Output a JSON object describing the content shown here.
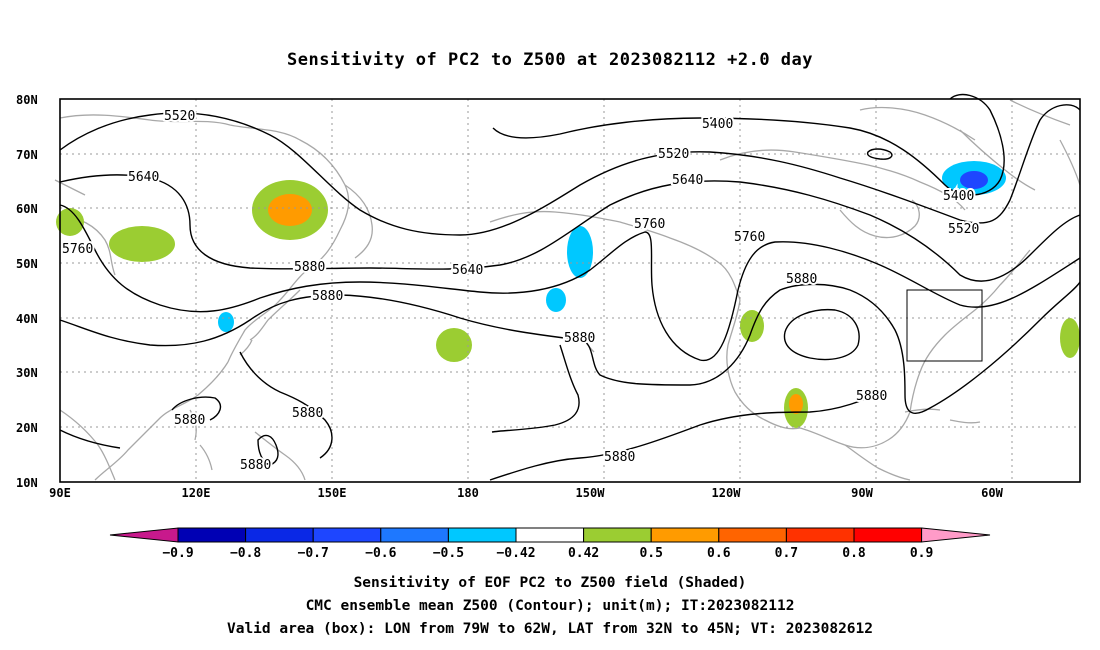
{
  "title": "Sensitivity of PC2 to Z500 at 2023082112 +2.0 day",
  "lat_labels": [
    "80N",
    "70N",
    "60N",
    "50N",
    "40N",
    "30N",
    "20N",
    "10N"
  ],
  "lon_labels": [
    "90E",
    "120E",
    "150E",
    "180",
    "150W",
    "120W",
    "90W",
    "60W"
  ],
  "contour_labels": [
    "5520",
    "5640",
    "5760",
    "5880",
    "5400",
    "5520",
    "5640",
    "5760",
    "5880",
    "5400",
    "5520",
    "5640",
    "5760",
    "5880",
    "5880",
    "5880",
    "5880",
    "5880",
    "5880",
    "5880"
  ],
  "colorbar": {
    "labels": [
      "-0.9",
      "-0.8",
      "-0.7",
      "-0.6",
      "-0.5",
      "-0.42",
      "0.42",
      "0.5",
      "0.6",
      "0.7",
      "0.8",
      "0.9"
    ],
    "colors": [
      "#0000b4",
      "#0a28e6",
      "#1e46ff",
      "#1e78ff",
      "#00c8ff",
      "#ffffff",
      "#9bcd32",
      "#ff9b00",
      "#ff6400",
      "#ff3200",
      "#ff0000"
    ],
    "low_color": "#c8198c",
    "high_color": "#ff9bc8"
  },
  "shading_colors": {
    "neg_light": "#00c8ff",
    "neg_dark": "#1e46ff",
    "pos_light": "#9bcd32",
    "pos_orange": "#ff9b00"
  },
  "captions": [
    "Sensitivity of EOF PC2 to Z500 field (Shaded)",
    "CMC ensemble mean Z500 (Contour); unit(m); IT:2023082112",
    "Valid area (box): LON from 79W to 62W, LAT from 32N to 45N; VT: 2023082612"
  ],
  "valid_box": {
    "lon_min": -79,
    "lon_max": -62,
    "lat_min": 32,
    "lat_max": 45
  }
}
